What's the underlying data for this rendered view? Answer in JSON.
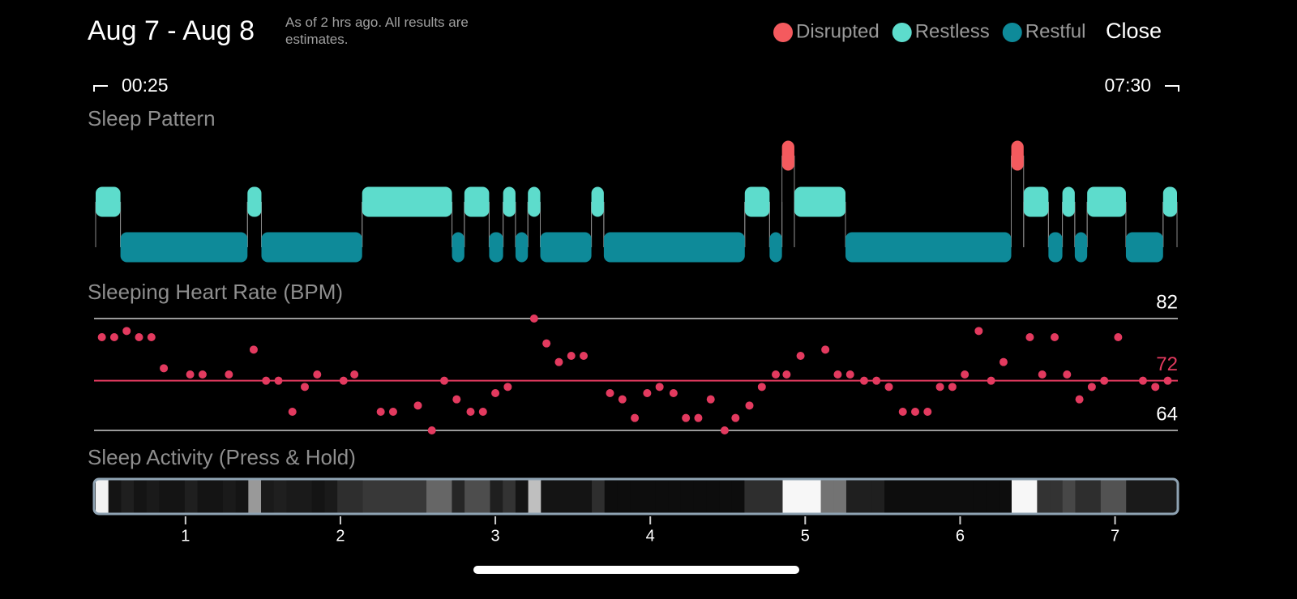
{
  "header": {
    "title": "Aug 7 - Aug 8",
    "subtitle": "As of 2 hrs ago. All results are estimates.",
    "close": "Close"
  },
  "time_range": {
    "start": "00:25",
    "end": "07:30"
  },
  "chart_data": [
    {
      "type": "timeline",
      "title": "Sleep Pattern",
      "xlim": [
        0.42,
        7.4
      ],
      "legend": "top-right",
      "series": [
        {
          "name": "Disrupted",
          "color": "#f45a5e",
          "intervals": [
            [
              4.85,
              4.93
            ],
            [
              6.33,
              6.41
            ]
          ]
        },
        {
          "name": "Restless",
          "color": "#5ddccc",
          "intervals": [
            [
              0.42,
              0.58
            ],
            [
              1.4,
              1.49
            ],
            [
              2.14,
              2.72
            ],
            [
              2.8,
              2.96
            ],
            [
              3.05,
              3.13
            ],
            [
              3.21,
              3.29
            ],
            [
              3.62,
              3.7
            ],
            [
              4.61,
              4.77
            ],
            [
              4.93,
              5.26
            ],
            [
              6.41,
              6.57
            ],
            [
              6.66,
              6.74
            ],
            [
              6.82,
              7.07
            ],
            [
              7.31,
              7.4
            ]
          ]
        },
        {
          "name": "Restful",
          "color": "#0e8a99",
          "intervals": [
            [
              0.58,
              1.4
            ],
            [
              1.49,
              2.14
            ],
            [
              2.72,
              2.8
            ],
            [
              2.96,
              3.05
            ],
            [
              3.13,
              3.21
            ],
            [
              3.29,
              3.62
            ],
            [
              3.7,
              4.61
            ],
            [
              4.77,
              4.85
            ],
            [
              5.26,
              6.33
            ],
            [
              6.57,
              6.66
            ],
            [
              6.74,
              6.82
            ],
            [
              7.07,
              7.31
            ]
          ]
        }
      ]
    },
    {
      "type": "scatter",
      "title": "Sleeping Heart Rate (BPM)",
      "xlim": [
        0.42,
        7.4
      ],
      "ylim": [
        64,
        82
      ],
      "yticks": [
        64,
        72,
        82
      ],
      "ytick_colors": [
        "#ffffff",
        "#e33a5f",
        "#ffffff"
      ],
      "color": "#e33a5f",
      "x": [
        0.46,
        0.54,
        0.62,
        0.7,
        0.78,
        0.86,
        1.03,
        1.11,
        1.28,
        1.44,
        1.52,
        1.6,
        1.69,
        1.77,
        1.85,
        2.02,
        2.09,
        2.26,
        2.34,
        2.5,
        2.59,
        2.67,
        2.75,
        2.84,
        2.92,
        3.0,
        3.08,
        3.25,
        3.33,
        3.41,
        3.49,
        3.57,
        3.74,
        3.82,
        3.9,
        3.98,
        4.06,
        4.15,
        4.23,
        4.31,
        4.39,
        4.48,
        4.55,
        4.64,
        4.72,
        4.81,
        4.88,
        4.97,
        5.13,
        5.21,
        5.29,
        5.38,
        5.46,
        5.54,
        5.63,
        5.71,
        5.79,
        5.87,
        5.95,
        6.03,
        6.12,
        6.2,
        6.28,
        6.45,
        6.53,
        6.61,
        6.69,
        6.77,
        6.85,
        6.93,
        7.02,
        7.18,
        7.26,
        7.34
      ],
      "values": [
        79,
        79,
        80,
        79,
        79,
        74,
        73,
        73,
        73,
        77,
        72,
        72,
        67,
        71,
        73,
        72,
        73,
        67,
        67,
        68,
        64,
        72,
        69,
        67,
        67,
        70,
        71,
        82,
        78,
        75,
        76,
        76,
        70,
        69,
        66,
        70,
        71,
        70,
        66,
        66,
        69,
        64,
        66,
        68,
        71,
        73,
        73,
        76,
        77,
        73,
        73,
        72,
        72,
        71,
        67,
        67,
        67,
        71,
        71,
        73,
        80,
        72,
        75,
        79,
        73,
        79,
        73,
        69,
        71,
        72,
        79,
        72,
        71,
        72
      ]
    },
    {
      "type": "heatmap",
      "title": "Sleep Activity (Press & Hold)",
      "xlim": [
        0.42,
        7.4
      ],
      "xticks": [
        1,
        2,
        3,
        4,
        5,
        6,
        7
      ],
      "values": [
        95,
        8,
        12,
        8,
        10,
        8,
        8,
        12,
        8,
        8,
        10,
        8,
        60,
        10,
        12,
        10,
        10,
        8,
        10,
        18,
        18,
        22,
        22,
        22,
        22,
        22,
        40,
        40,
        15,
        30,
        30,
        12,
        20,
        8,
        75,
        8,
        8,
        8,
        8,
        18,
        5,
        5,
        5,
        5,
        5,
        5,
        5,
        5,
        5,
        5,
        5,
        18,
        18,
        18,
        97,
        97,
        97,
        45,
        45,
        12,
        12,
        12,
        5,
        5,
        5,
        5,
        5,
        5,
        5,
        5,
        5,
        5,
        97,
        97,
        20,
        20,
        28,
        18,
        18,
        32,
        32,
        10,
        10,
        10,
        10
      ]
    }
  ]
}
